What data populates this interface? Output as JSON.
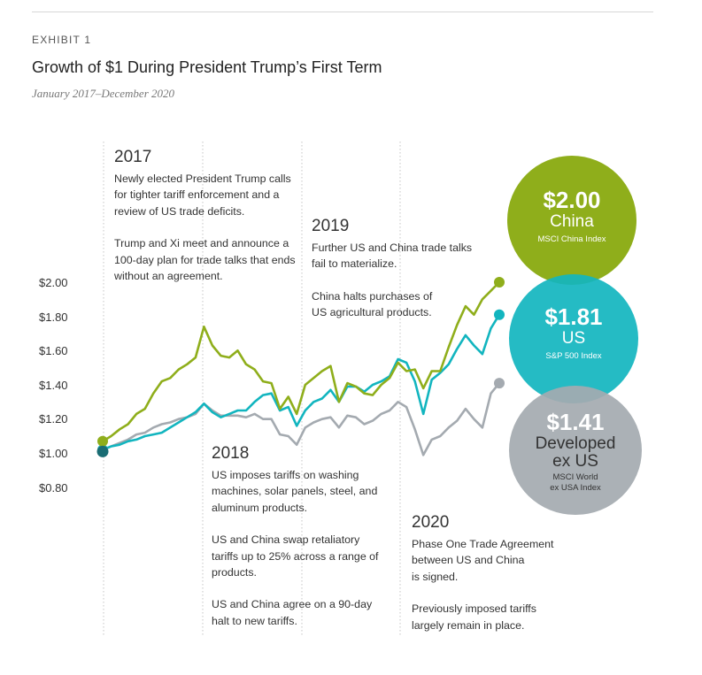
{
  "header": {
    "exhibit": "EXHIBIT 1",
    "title": "Growth of $1 During President Trump’s First Term",
    "subtitle": "January 2017–December 2020"
  },
  "colors": {
    "china": "#8fae1b",
    "us": "#12b5bf",
    "developed": "#a4aab0",
    "divider": "#c4c4c4"
  },
  "annotations": [
    {
      "year": "2017",
      "paragraphs": [
        [
          "Newly elected President Trump calls",
          "for tighter tariff enforcement and a",
          "review of US trade deficits."
        ],
        [
          "Trump and Xi meet and announce a",
          "100-day plan for trade talks that ends",
          "without an agreement."
        ]
      ]
    },
    {
      "year": "2018",
      "paragraphs": [
        [
          "US imposes tariffs on washing",
          "machines, solar panels, steel, and",
          "aluminum products."
        ],
        [
          "US and China swap retaliatory",
          "tariffs up to 25% across a range of",
          "products."
        ],
        [
          "US and China agree on a 90-day",
          "halt to new tariffs."
        ]
      ]
    },
    {
      "year": "2019",
      "paragraphs": [
        [
          "Further US and China trade talks",
          "fail to materialize."
        ],
        [
          "China halts purchases of",
          "US agricultural products."
        ]
      ]
    },
    {
      "year": "2020",
      "paragraphs": [
        [
          "Phase One Trade Agreement",
          "between US and China",
          "is signed."
        ],
        [
          "Previously imposed tariffs",
          "largely remain in place."
        ]
      ]
    }
  ],
  "callouts": {
    "china": {
      "value": "$2.00",
      "name": "China",
      "index": "MSCI China Index"
    },
    "us": {
      "value": "$1.81",
      "name": "US",
      "index": "S&P 500 Index"
    },
    "developed": {
      "value": "$1.41",
      "name": [
        "Developed",
        "ex US"
      ],
      "index": [
        "MSCI World",
        "ex USA Index"
      ]
    }
  },
  "chart_data": {
    "type": "line",
    "title": "Growth of $1 During President Trump’s First Term",
    "xlabel": "",
    "ylabel": "",
    "x_range": [
      2017.0,
      2021.0
    ],
    "ylim": [
      0.8,
      2.0
    ],
    "yticks": [
      2.0,
      1.8,
      1.6,
      1.4,
      1.2,
      1.0,
      0.8
    ],
    "ytick_labels": [
      "$2.00",
      "$1.80",
      "$1.60",
      "$1.40",
      "$1.20",
      "$1.00",
      "$0.80"
    ],
    "grid": false,
    "dividers": [
      2017.0,
      2018.0,
      2019.0,
      2020.0
    ],
    "series": [
      {
        "name": "China",
        "index": "MSCI China Index",
        "final": 2.0,
        "values": [
          1.07,
          1.1,
          1.14,
          1.17,
          1.23,
          1.26,
          1.35,
          1.42,
          1.44,
          1.49,
          1.52,
          1.56,
          1.74,
          1.63,
          1.57,
          1.56,
          1.6,
          1.52,
          1.49,
          1.42,
          1.41,
          1.26,
          1.33,
          1.23,
          1.4,
          1.44,
          1.48,
          1.51,
          1.3,
          1.41,
          1.39,
          1.35,
          1.34,
          1.4,
          1.44,
          1.53,
          1.48,
          1.49,
          1.38,
          1.48,
          1.48,
          1.62,
          1.75,
          1.86,
          1.81,
          1.9,
          1.95,
          2.0
        ]
      },
      {
        "name": "US",
        "index": "S&P 500 Index",
        "final": 1.81,
        "values": [
          1.02,
          1.04,
          1.05,
          1.07,
          1.08,
          1.1,
          1.11,
          1.12,
          1.15,
          1.18,
          1.21,
          1.24,
          1.29,
          1.24,
          1.21,
          1.23,
          1.25,
          1.25,
          1.3,
          1.34,
          1.35,
          1.25,
          1.27,
          1.16,
          1.25,
          1.3,
          1.32,
          1.37,
          1.3,
          1.39,
          1.39,
          1.36,
          1.4,
          1.42,
          1.45,
          1.55,
          1.53,
          1.42,
          1.23,
          1.43,
          1.47,
          1.52,
          1.61,
          1.69,
          1.63,
          1.58,
          1.73,
          1.81
        ]
      },
      {
        "name": "Developed ex US",
        "index": "MSCI World ex USA Index",
        "final": 1.41,
        "values": [
          1.02,
          1.04,
          1.06,
          1.08,
          1.11,
          1.12,
          1.15,
          1.17,
          1.18,
          1.2,
          1.21,
          1.23,
          1.29,
          1.25,
          1.22,
          1.22,
          1.22,
          1.21,
          1.23,
          1.2,
          1.2,
          1.11,
          1.1,
          1.05,
          1.15,
          1.18,
          1.2,
          1.21,
          1.15,
          1.22,
          1.21,
          1.17,
          1.19,
          1.23,
          1.25,
          1.3,
          1.27,
          1.14,
          0.99,
          1.08,
          1.1,
          1.15,
          1.19,
          1.26,
          1.2,
          1.15,
          1.35,
          1.41
        ]
      }
    ]
  }
}
